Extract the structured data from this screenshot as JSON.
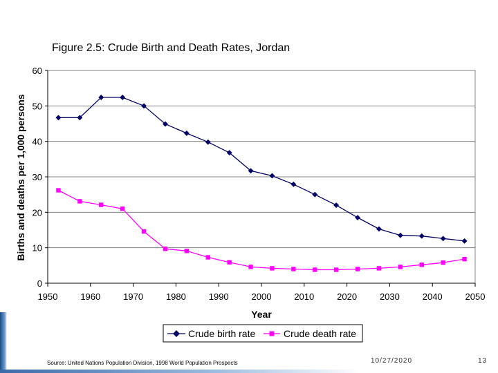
{
  "slide": {
    "source": "Source:  United Nations Population Division, 1998 World Population Prospects",
    "date": "10/27/2020",
    "page_number": "13"
  },
  "chart_data": {
    "type": "line",
    "title": "Figure 2.5: Crude Birth and Death Rates, Jordan",
    "xlabel": "Year",
    "ylabel": "Births and deaths per 1,000 persons",
    "xlim": [
      1950,
      2050
    ],
    "ylim": [
      0,
      60
    ],
    "xticks": [
      1950,
      1960,
      1970,
      1980,
      1990,
      2000,
      2010,
      2020,
      2030,
      2040,
      2050
    ],
    "yticks": [
      0,
      10,
      20,
      30,
      40,
      50,
      60
    ],
    "grid": "horizontal",
    "legend": "bottom",
    "x": [
      1952.5,
      1957.5,
      1962.5,
      1967.5,
      1972.5,
      1977.5,
      1982.5,
      1987.5,
      1992.5,
      1997.5,
      2002.5,
      2007.5,
      2012.5,
      2017.5,
      2022.5,
      2027.5,
      2032.5,
      2037.5,
      2042.5,
      2047.5
    ],
    "series": [
      {
        "name": "Crude birth rate",
        "color": "#000066",
        "marker": "diamond",
        "values": [
          46.7,
          46.7,
          52.4,
          52.4,
          50.0,
          44.9,
          42.3,
          39.8,
          36.8,
          31.7,
          30.3,
          27.9,
          25.0,
          22.0,
          18.5,
          15.3,
          13.5,
          13.3,
          12.6,
          11.9
        ]
      },
      {
        "name": "Crude death rate",
        "color": "#ff00ff",
        "marker": "square",
        "values": [
          26.2,
          23.1,
          22.1,
          21.0,
          14.6,
          9.7,
          9.1,
          7.3,
          5.9,
          4.6,
          4.2,
          4.0,
          3.8,
          3.8,
          4.0,
          4.2,
          4.6,
          5.2,
          5.8,
          6.8
        ]
      }
    ]
  }
}
